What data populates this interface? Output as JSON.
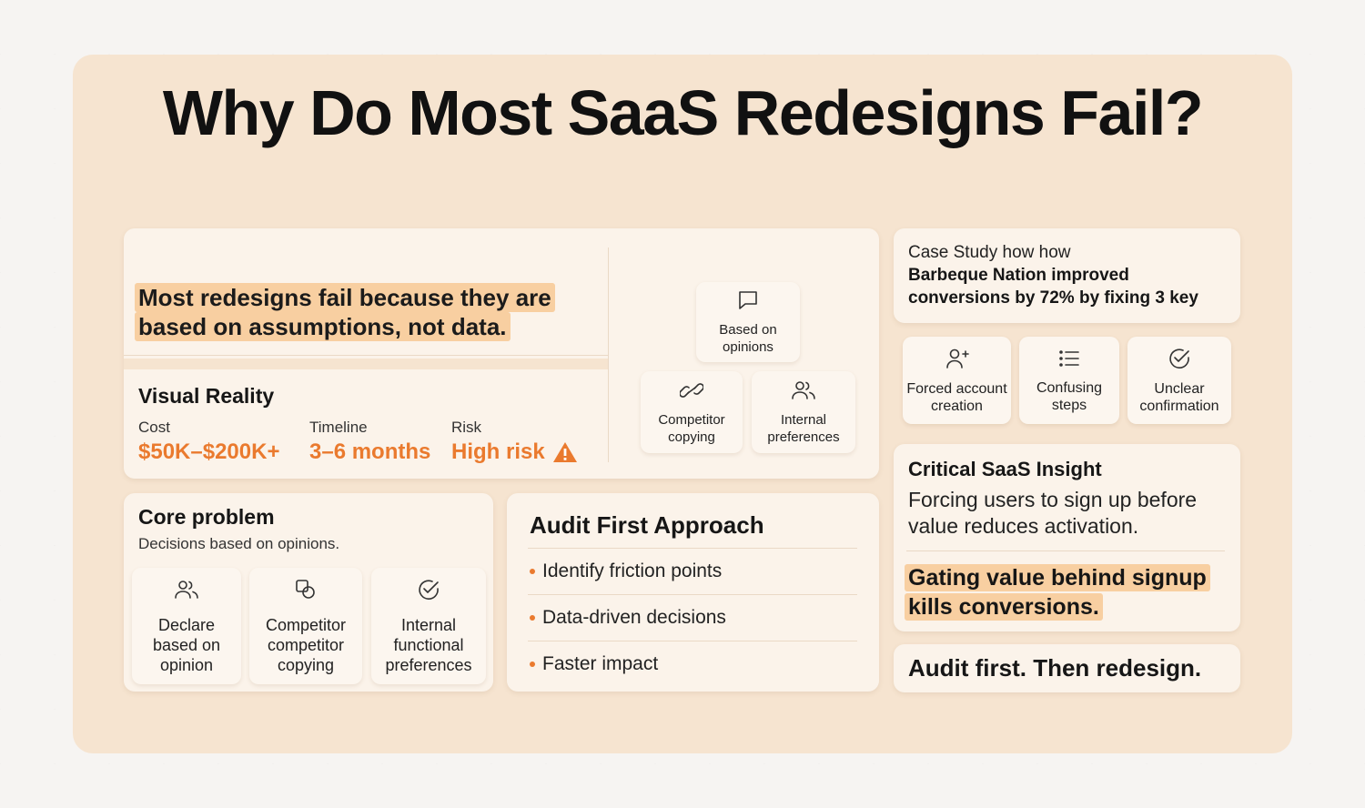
{
  "title": "Why Do Most SaaS Redesigns Fail?",
  "hero": {
    "statement_line1": "Most redesigns fail because they are",
    "statement_line2": "based on assumptions, not data."
  },
  "opinion_sources": [
    {
      "icon": "chat-bubble-icon",
      "line1": "Based on",
      "line2": "opinions"
    },
    {
      "icon": "link-icon",
      "line1": "Competitor",
      "line2": "copying"
    },
    {
      "icon": "users-icon",
      "line1": "Internal",
      "line2": "preferences"
    }
  ],
  "visual_reality": {
    "heading": "Visual Reality",
    "metrics": [
      {
        "label": "Cost",
        "value": "$50K–$200K+"
      },
      {
        "label": "Timeline",
        "value": "3–6 months"
      },
      {
        "label": "Risk",
        "value": "High risk"
      }
    ],
    "risk_icon": "warning-icon"
  },
  "core_problem": {
    "heading": "Core problem",
    "subheading": "Decisions based on opinions.",
    "items": [
      {
        "icon": "users-icon",
        "line1": "Declare",
        "line2": "based on",
        "line3": "opinion"
      },
      {
        "icon": "copy-icon",
        "line1": "Competitor",
        "line2": "competitor",
        "line3": "copying"
      },
      {
        "icon": "check-circle-icon",
        "line1": "Internal",
        "line2": "functional",
        "line3": "preferences"
      }
    ]
  },
  "audit": {
    "heading": "Audit First Approach",
    "bullets": [
      "Identify friction points",
      "Data-driven decisions",
      "Faster impact"
    ]
  },
  "case_study": {
    "intro": "Case Study how how",
    "bold_line1": "Barbeque Nation improved",
    "bold_line2": "conversions by 72% by fixing 3 key",
    "fixes": [
      {
        "icon": "user-plus-icon",
        "line1": "Forced account",
        "line2": "creation"
      },
      {
        "icon": "list-icon",
        "line1": "Confusing",
        "line2": "steps"
      },
      {
        "icon": "check-circle-icon",
        "line1": "Unclear",
        "line2": "confirmation"
      }
    ]
  },
  "insight": {
    "heading": "Critical SaaS Insight",
    "body_line1": "Forcing users to sign up before",
    "body_line2": "value reduces activation.",
    "highlight_line1": "Gating value behind signup",
    "highlight_line2": "kills conversions."
  },
  "footer_cta": "Audit first. Then redesign.",
  "colors": {
    "accent": "#ea7a2e",
    "highlight": "#f8cfa1",
    "panel": "#f6e4d0",
    "card": "#fbf3ea"
  }
}
